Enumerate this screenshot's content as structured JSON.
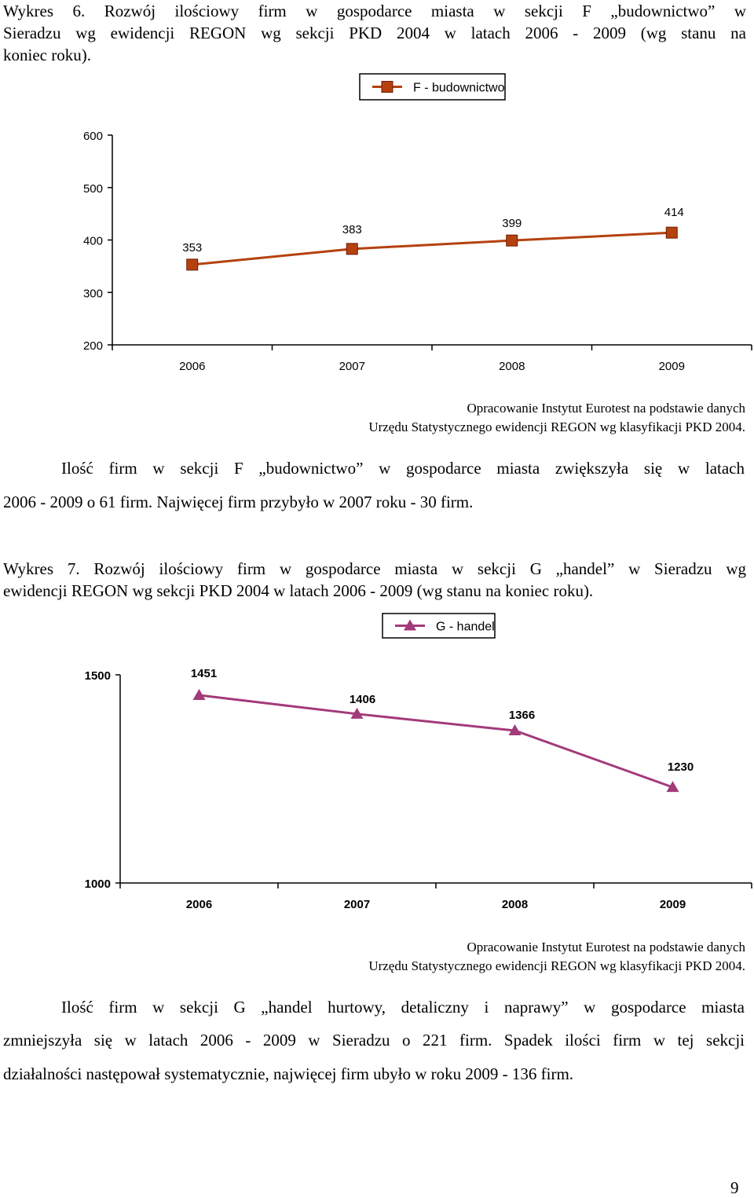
{
  "chart6": {
    "caption": {
      "line1": "Wykres 6. Rozwój ilościowy firm w gospodarce miasta w sekcji F „budownictwo” w",
      "line2": "Sieradzu wg ewidencji REGON wg sekcji PKD 2004 w latach 2006 - 2009 (wg stanu na",
      "line3": "koniec roku)."
    },
    "source": {
      "line1": "Opracowanie Instytut Eurotest na podstawie danych",
      "line2": "Urzędu Statystycznego ewidencji REGON wg klasyfikacji PKD 2004."
    }
  },
  "text6": {
    "line1": "Ilość firm w sekcji F „budownictwo” w gospodarce miasta zwiększyła się w latach",
    "line2": "2006 - 2009 o 61 firm. Najwięcej firm przybyło w 2007 roku - 30 firm."
  },
  "chart7": {
    "caption": {
      "line1": "Wykres 7. Rozwój ilościowy firm w gospodarce miasta w sekcji G „handel” w Sieradzu wg",
      "line2": "ewidencji REGON wg sekcji PKD 2004 w latach 2006 - 2009 (wg stanu na koniec roku)."
    },
    "source": {
      "line1": "Opracowanie Instytut Eurotest na podstawie danych",
      "line2": "Urzędu Statystycznego ewidencji REGON wg klasyfikacji PKD 2004."
    }
  },
  "text7": {
    "line1": "Ilość firm w sekcji G „handel hurtowy, detaliczny i naprawy” w gospodarce miasta",
    "line2": "zmniejszyła się w latach 2006 - 2009 w Sieradzu o 221 firm. Spadek ilości firm w tej sekcji",
    "line3": "działalności następował systematycznie, najwięcej firm ubyło w roku 2009 - 136 firm."
  },
  "page_number": "9",
  "chart_data": [
    {
      "type": "line",
      "title": "",
      "categories": [
        "2006",
        "2007",
        "2008",
        "2009"
      ],
      "series": [
        {
          "name": "F - budownictwo",
          "values": [
            353,
            383,
            399,
            414
          ],
          "color": "#B5410F",
          "marker": "square"
        }
      ],
      "yticks": [
        "200",
        "300",
        "400",
        "500",
        "600"
      ],
      "ylim": [
        200,
        600
      ],
      "xlabel": "",
      "ylabel": "",
      "legend": "top-center",
      "grid": false
    },
    {
      "type": "line",
      "title": "",
      "categories": [
        "2006",
        "2007",
        "2008",
        "2009"
      ],
      "series": [
        {
          "name": "G - handel",
          "values": [
            1451,
            1406,
            1366,
            1230
          ],
          "color": "#A33A7A",
          "marker": "triangle"
        }
      ],
      "yticks": [
        "1000",
        "1500"
      ],
      "ylim": [
        1000,
        1500
      ],
      "xlabel": "",
      "ylabel": "",
      "legend": "top-center",
      "grid": false
    }
  ]
}
